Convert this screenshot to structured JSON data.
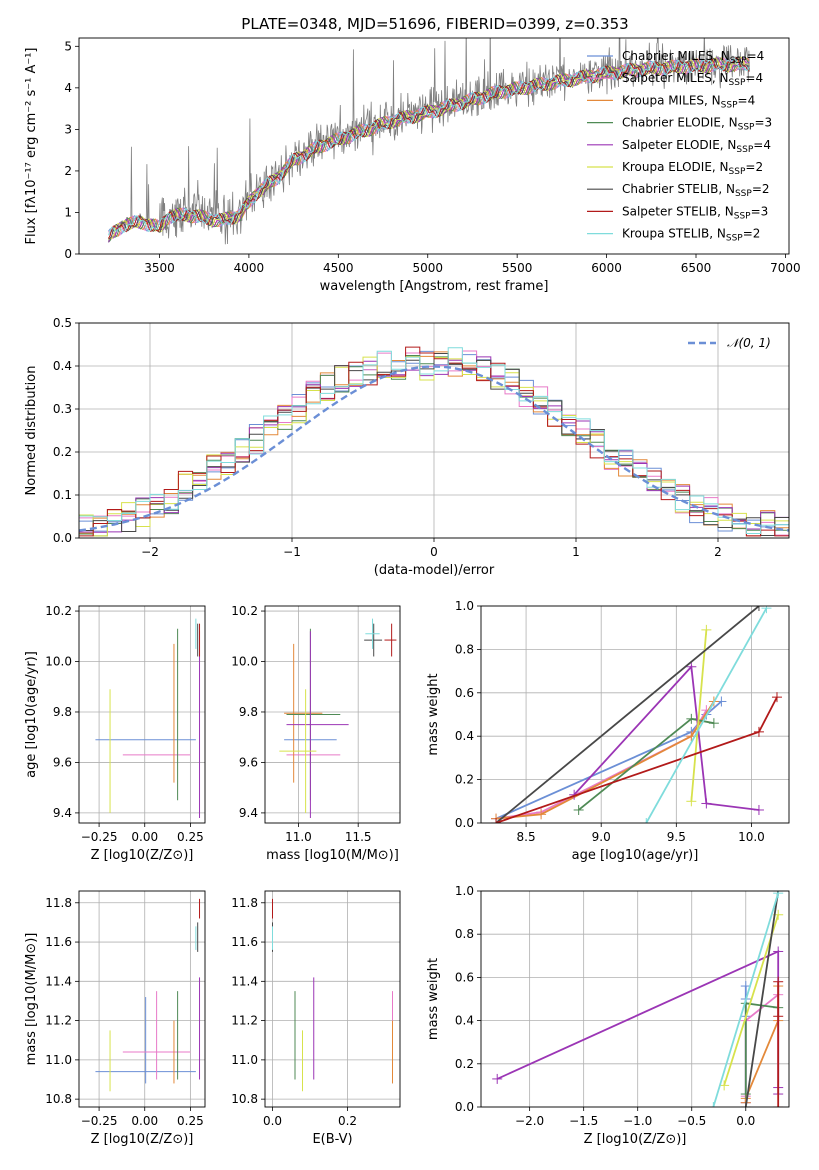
{
  "figure": {
    "title": "PLATE=0348, MJD=51696, FIBERID=0399, z=0.353"
  },
  "colors": {
    "Chabrier MILES": "#6b8fd6",
    "Salpeter MILES": "#e87ac8",
    "Kroupa MILES": "#e3893a",
    "Chabrier ELODIE": "#4f8a55",
    "Salpeter ELODIE": "#9b35b5",
    "Kroupa ELODIE": "#d7e24c",
    "Chabrier STELIB": "#484848",
    "Salpeter STELIB": "#b21a1a",
    "Kroupa STELIB": "#7fdcdc",
    "data": "#808080",
    "normal": "#6b8fd6"
  },
  "chart_data": [
    {
      "id": "spectrum",
      "type": "line",
      "title": "PLATE=0348, MJD=51696, FIBERID=0399, z=0.353",
      "xlabel": "wavelength [Angstrom, rest frame]",
      "ylabel": "Flux [fλ10⁻¹⁷ erg cm⁻² s⁻¹ A⁻¹]",
      "xlim": [
        3050,
        7020
      ],
      "ylim": [
        0,
        5.2
      ],
      "xticks": [
        3500,
        4000,
        4500,
        5000,
        5500,
        6000,
        6500,
        7000
      ],
      "yticks": [
        0,
        1,
        2,
        3,
        4,
        5
      ],
      "grid": false,
      "legend_position": "right",
      "spectrum_anchors": {
        "x": [
          3215,
          3300,
          3400,
          3500,
          3550,
          3650,
          3750,
          3850,
          3950,
          4050,
          4150,
          4250,
          4400,
          4600,
          4800,
          5000,
          5200,
          5400,
          5600,
          5800,
          6000,
          6200,
          6400,
          6600,
          6800
        ],
        "y": [
          0.45,
          0.75,
          0.82,
          0.68,
          0.95,
          1.0,
          0.92,
          0.85,
          1.0,
          1.55,
          1.85,
          2.3,
          2.65,
          2.95,
          3.25,
          3.45,
          3.7,
          3.95,
          4.1,
          4.25,
          4.4,
          4.5,
          4.55,
          4.6,
          4.62
        ]
      },
      "series": [
        {
          "name": "Chabrier MILES",
          "nssp": "4"
        },
        {
          "name": "Salpeter MILES",
          "nssp": "4"
        },
        {
          "name": "Kroupa MILES",
          "nssp": "4"
        },
        {
          "name": "Chabrier ELODIE",
          "nssp": "3"
        },
        {
          "name": "Salpeter ELODIE",
          "nssp": "4"
        },
        {
          "name": "Kroupa ELODIE",
          "nssp": "2"
        },
        {
          "name": "Chabrier STELIB",
          "nssp": "2"
        },
        {
          "name": "Salpeter STELIB",
          "nssp": "3"
        },
        {
          "name": "Kroupa STELIB",
          "nssp": "2"
        }
      ]
    },
    {
      "id": "residuals",
      "type": "line",
      "xlabel": "(data-model)/error",
      "ylabel": "Normed distribution",
      "xlim": [
        -2.5,
        2.5
      ],
      "ylim": [
        0,
        0.5
      ],
      "xticks": [
        -2,
        -1,
        0,
        1,
        2
      ],
      "yticks": [
        0.0,
        0.1,
        0.2,
        0.3,
        0.4,
        0.5
      ],
      "grid": true,
      "legend_position": "top-right",
      "normal_label": "𝒩(0, 1)"
    },
    {
      "id": "age-vs-Z",
      "type": "scatter",
      "xlabel": "Z [log10(Z/Z⊙)]",
      "ylabel": "age  [log10(age/yr)]",
      "xlim": [
        -0.36,
        0.33
      ],
      "ylim": [
        9.36,
        10.22
      ],
      "xticks": [
        -0.25,
        0.0,
        0.25
      ],
      "yticks": [
        9.4,
        9.6,
        9.8,
        10.0,
        10.2
      ],
      "grid": true
    },
    {
      "id": "age-vs-mass",
      "type": "scatter",
      "xlabel": "mass [log10(M/M⊙)]",
      "ylabel": "",
      "xlim": [
        10.72,
        11.85
      ],
      "ylim": [
        9.36,
        10.22
      ],
      "xticks": [
        11.0,
        11.5
      ],
      "yticks": [
        9.4,
        9.6,
        9.8,
        10.0,
        10.2
      ],
      "grid": true
    },
    {
      "id": "massweight-vs-age",
      "type": "line",
      "xlabel": "age  [log10(age/yr)]",
      "ylabel": "mass weight",
      "xlim": [
        8.2,
        10.25
      ],
      "ylim": [
        0,
        1
      ],
      "xticks": [
        8.5,
        9.0,
        9.5,
        10.0
      ],
      "yticks": [
        0.0,
        0.2,
        0.4,
        0.6,
        0.8,
        1.0
      ],
      "grid": true
    },
    {
      "id": "mass-vs-Z",
      "type": "scatter",
      "xlabel": "Z [log10(Z/Z⊙)]",
      "ylabel": "mass [log10(M/M⊙)]",
      "xlim": [
        -0.36,
        0.33
      ],
      "ylim": [
        10.76,
        11.86
      ],
      "xticks": [
        -0.25,
        0.0,
        0.25
      ],
      "yticks": [
        10.8,
        11.0,
        11.2,
        11.4,
        11.6,
        11.8
      ],
      "grid": true
    },
    {
      "id": "mass-vs-ebv",
      "type": "scatter",
      "xlabel": "E(B-V)",
      "ylabel": "",
      "xlim": [
        -0.02,
        0.34
      ],
      "ylim": [
        10.76,
        11.86
      ],
      "xticks": [
        0.0,
        0.2
      ],
      "yticks": [
        10.8,
        11.0,
        11.2,
        11.4,
        11.6,
        11.8
      ],
      "grid": true
    },
    {
      "id": "massweight-vs-Z",
      "type": "line",
      "xlabel": "Z [log10(Z/Z⊙)]",
      "ylabel": "mass weight",
      "xlim": [
        -2.45,
        0.4
      ],
      "ylim": [
        0,
        1
      ],
      "xticks": [
        -2.0,
        -1.5,
        -1.0,
        -0.5,
        0.0
      ],
      "yticks": [
        0.0,
        0.2,
        0.4,
        0.6,
        0.8,
        1.0
      ],
      "grid": true
    }
  ],
  "fits": [
    {
      "name": "Chabrier MILES",
      "Z": [
        -0.27,
        0.28
      ],
      "age": [
        9.69,
        9.69
      ],
      "age_err": 0.0,
      "mass": 10.94,
      "mass_lo": 10.88,
      "mass_hi": 11.32,
      "ebv": 0.32,
      "ssp_age": [
        8.3,
        9.6,
        9.7,
        9.8
      ],
      "ssp_w": [
        0.02,
        0.42,
        0.5,
        0.56
      ],
      "ssp_Z": [
        0.0,
        0.0,
        0.0,
        0.0
      ]
    },
    {
      "name": "Salpeter MILES",
      "Z": [
        -0.12,
        0.25
      ],
      "age": [
        9.63,
        9.63
      ],
      "age_err": 0.0,
      "mass": 11.04,
      "mass_lo": 10.9,
      "mass_hi": 11.35,
      "ebv": 0.32,
      "ssp_age": [
        8.3,
        8.6,
        9.6,
        9.7
      ],
      "ssp_w": [
        0.02,
        0.05,
        0.4,
        0.52
      ],
      "ssp_Z": [
        0.0,
        0.0,
        0.0,
        0.3
      ]
    },
    {
      "name": "Kroupa MILES",
      "Z": [
        0.16,
        0.16
      ],
      "age": [
        9.52,
        10.07
      ],
      "age_err": 0.0,
      "mass": 10.96,
      "mass_lo": 10.88,
      "mass_hi": 11.2,
      "ebv": 0.32,
      "ssp_age": [
        8.3,
        8.6,
        9.6,
        9.75
      ],
      "ssp_w": [
        0.02,
        0.04,
        0.4,
        0.56
      ],
      "ssp_Z": [
        0.0,
        0.0,
        0.3,
        0.3
      ]
    },
    {
      "name": "Chabrier ELODIE",
      "Z": [
        0.18,
        0.18
      ],
      "age": [
        9.45,
        10.13
      ],
      "age_err": 0.0,
      "mass": 11.1,
      "mass_lo": 10.9,
      "mass_hi": 11.35,
      "ebv": 0.06,
      "ssp_age": [
        8.85,
        9.6,
        9.75
      ],
      "ssp_w": [
        0.06,
        0.48,
        0.46
      ],
      "ssp_Z": [
        0.0,
        0.0,
        0.3
      ]
    },
    {
      "name": "Salpeter ELODIE",
      "Z": [
        0.3,
        0.3
      ],
      "age": [
        9.38,
        10.12
      ],
      "age_err": 0.0,
      "mass": 11.1,
      "mass_lo": 10.9,
      "mass_hi": 11.42,
      "ebv": 0.11,
      "ssp_age": [
        8.82,
        9.6,
        9.7,
        10.05
      ],
      "ssp_w": [
        0.13,
        0.72,
        0.09,
        0.06
      ],
      "ssp_Z": [
        -2.3,
        0.3,
        0.3,
        0.3
      ]
    },
    {
      "name": "Kroupa ELODIE",
      "Z": [
        -0.19,
        -0.19
      ],
      "age": [
        9.4,
        9.89
      ],
      "age_err": 0.0,
      "mass": 11.06,
      "mass_lo": 10.84,
      "mass_hi": 11.15,
      "ebv": 0.08,
      "ssp_age": [
        9.6,
        9.7
      ],
      "ssp_w": [
        0.1,
        0.89
      ],
      "ssp_Z": [
        -0.2,
        0.3
      ]
    },
    {
      "name": "Chabrier STELIB",
      "Z": [
        0.29,
        0.29
      ],
      "age": [
        10.02,
        10.15
      ],
      "age_err": 0.0,
      "mass": 11.63,
      "mass_lo": 11.55,
      "mass_hi": 11.7,
      "ebv": 0.0,
      "ssp_age": [
        8.3,
        10.05
      ],
      "ssp_w": [
        0.0,
        1.0
      ],
      "ssp_Z": [
        0.0,
        0.3
      ]
    },
    {
      "name": "Salpeter STELIB",
      "Z": [
        0.3,
        0.3
      ],
      "age": [
        10.02,
        10.15
      ],
      "age_err": 0.0,
      "mass": 11.78,
      "mass_lo": 11.72,
      "mass_hi": 11.82,
      "ebv": 0.0,
      "ssp_age": [
        8.3,
        10.05,
        10.17
      ],
      "ssp_w": [
        0.0,
        0.42,
        0.58
      ],
      "ssp_Z": [
        0.3,
        0.3,
        0.3
      ]
    },
    {
      "name": "Kroupa STELIB",
      "Z": [
        0.28,
        0.28
      ],
      "age": [
        10.05,
        10.17
      ],
      "age_err": 0.0,
      "mass": 11.62,
      "mass_lo": 11.56,
      "mass_hi": 11.68,
      "ebv": 0.0,
      "ssp_age": [
        9.3,
        10.1
      ],
      "ssp_w": [
        0.0,
        0.99
      ],
      "ssp_Z": [
        -0.3,
        0.3
      ]
    }
  ],
  "bins": {
    "centers": [
      -2.45,
      -2.35,
      -2.25,
      -2.15,
      -2.05,
      -1.95,
      -1.85,
      -1.75,
      -1.65,
      -1.55,
      -1.45,
      -1.35,
      -1.25,
      -1.15,
      -1.05,
      -0.95,
      -0.85,
      -0.75,
      -0.65,
      -0.55,
      -0.45,
      -0.35,
      -0.25,
      -0.15,
      -0.05,
      0.05,
      0.15,
      0.25,
      0.35,
      0.45,
      0.55,
      0.65,
      0.75,
      0.85,
      0.95,
      1.05,
      1.15,
      1.25,
      1.35,
      1.45,
      1.55,
      1.65,
      1.75,
      1.85,
      1.95,
      2.05,
      2.15,
      2.25,
      2.35,
      2.45
    ],
    "values": [
      0.02,
      0.03,
      0.04,
      0.05,
      0.06,
      0.07,
      0.09,
      0.12,
      0.14,
      0.16,
      0.18,
      0.2,
      0.23,
      0.26,
      0.28,
      0.3,
      0.33,
      0.35,
      0.37,
      0.38,
      0.39,
      0.4,
      0.4,
      0.41,
      0.4,
      0.41,
      0.41,
      0.4,
      0.39,
      0.38,
      0.36,
      0.34,
      0.32,
      0.29,
      0.27,
      0.25,
      0.22,
      0.19,
      0.17,
      0.15,
      0.13,
      0.11,
      0.09,
      0.07,
      0.06,
      0.05,
      0.04,
      0.03,
      0.03,
      0.02
    ]
  }
}
